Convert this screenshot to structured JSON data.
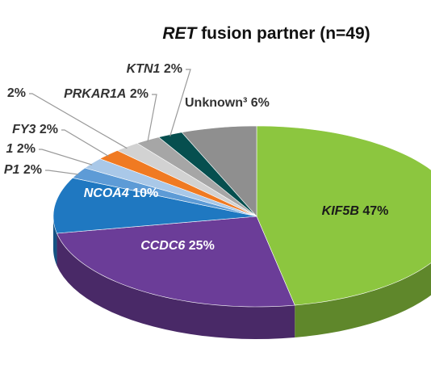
{
  "chart_data": {
    "type": "pie3d",
    "title_emphasis": "RET",
    "title": "fusion partner (n=49)",
    "categories": [
      "KIF5B",
      "CCDC6",
      "NCOA4",
      "P1",
      "1",
      "FY3",
      null,
      "PRKAR1A",
      "KTN1",
      "Unknown³"
    ],
    "values": [
      47,
      25,
      10,
      2,
      2,
      2,
      2,
      2,
      2,
      6
    ],
    "value_labels": [
      "47%",
      "25%",
      "10%",
      "2%",
      "2%",
      "2%",
      "2%",
      "2%",
      "2%",
      "6%"
    ],
    "colors": [
      "#8cc63f",
      "#6b3d98",
      "#1f78c1",
      "#5d9bd6",
      "#a9c8e8",
      "#f07a22",
      "#d2d2d2",
      "#a6a6a6",
      "#064f4f",
      "#8f8f8f"
    ]
  }
}
